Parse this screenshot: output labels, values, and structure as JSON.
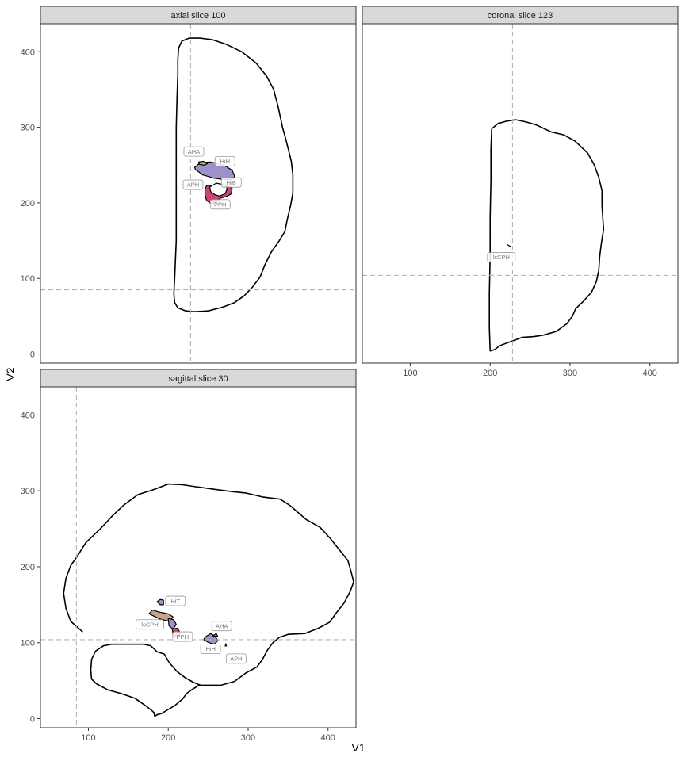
{
  "chart_data": {
    "type": "faceted-outline-plot",
    "xlabel": "V1",
    "ylabel": "V2",
    "xlim": [
      40,
      435
    ],
    "ylim": [
      -12,
      437
    ],
    "x_ticks": [
      100,
      200,
      300,
      400
    ],
    "y_ticks": [
      0,
      100,
      200,
      300,
      400
    ],
    "grid": false,
    "colors": {
      "outline": "#000000",
      "crosshair": "#b3b3b3",
      "strip_fill": "#d9d9d9",
      "purple": "#9e90c9",
      "magenta": "#c94472",
      "brown": "#c9a48a",
      "label_border": "#9a9a9a",
      "label_text": "#7a7a7a"
    },
    "panels": [
      {
        "title": "axial slice 100",
        "crosshair": {
          "x": 228,
          "y": 85
        },
        "outline": [
          [
            226,
            418
          ],
          [
            240,
            418
          ],
          [
            255,
            416
          ],
          [
            272,
            410
          ],
          [
            292,
            400
          ],
          [
            310,
            385
          ],
          [
            323,
            368
          ],
          [
            332,
            350
          ],
          [
            338,
            325
          ],
          [
            343,
            300
          ],
          [
            347,
            285
          ],
          [
            350,
            272
          ],
          [
            354,
            255
          ],
          [
            356,
            237
          ],
          [
            356,
            213
          ],
          [
            353,
            196
          ],
          [
            349,
            178
          ],
          [
            346,
            162
          ],
          [
            339,
            150
          ],
          [
            329,
            135
          ],
          [
            321,
            118
          ],
          [
            315,
            102
          ],
          [
            305,
            88
          ],
          [
            295,
            77
          ],
          [
            283,
            68
          ],
          [
            268,
            62
          ],
          [
            250,
            57
          ],
          [
            232,
            56
          ],
          [
            222,
            57
          ],
          [
            212,
            61
          ],
          [
            208,
            68
          ],
          [
            207,
            80
          ],
          [
            208,
            100
          ],
          [
            210,
            150
          ],
          [
            210,
            200
          ],
          [
            210,
            250
          ],
          [
            210,
            300
          ],
          [
            211,
            340
          ],
          [
            212,
            370
          ],
          [
            212,
            390
          ],
          [
            213,
            405
          ],
          [
            217,
            414
          ],
          [
            226,
            418
          ]
        ],
        "regions": [
          {
            "color": "purple",
            "points": [
              [
                233,
                247
              ],
              [
                240,
                253
              ],
              [
                252,
                254
              ],
              [
                264,
                252
              ],
              [
                273,
                248
              ],
              [
                280,
                243
              ],
              [
                283,
                236
              ],
              [
                282,
                232
              ],
              [
                276,
                231
              ],
              [
                268,
                231
              ],
              [
                262,
                232
              ],
              [
                256,
                233
              ],
              [
                250,
                235
              ],
              [
                243,
                237
              ],
              [
                238,
                241
              ],
              [
                234,
                244
              ],
              [
                233,
                247
              ]
            ]
          },
          {
            "color": "magenta",
            "points": [
              [
                248,
                223
              ],
              [
                254,
                223
              ],
              [
                258,
                220
              ],
              [
                262,
                223
              ],
              [
                274,
                223
              ],
              [
                280,
                219
              ],
              [
                279,
                212
              ],
              [
                274,
                209
              ],
              [
                265,
                206
              ],
              [
                260,
                201
              ],
              [
                254,
                199
              ],
              [
                248,
                203
              ],
              [
                246,
                210
              ],
              [
                246,
                218
              ],
              [
                248,
                223
              ]
            ]
          },
          {
            "color": "white",
            "points": [
              [
                252,
                221
              ],
              [
                260,
                226
              ],
              [
                270,
                224
              ],
              [
                274,
                219
              ],
              [
                271,
                212
              ],
              [
                264,
                209
              ],
              [
                258,
                211
              ],
              [
                253,
                215
              ],
              [
                252,
                221
              ]
            ]
          },
          {
            "color": "olive",
            "points": [
              [
                238,
                254
              ],
              [
                244,
                255
              ],
              [
                249,
                252
              ],
              [
                245,
                250
              ],
              [
                239,
                251
              ],
              [
                238,
                254
              ]
            ]
          }
        ],
        "labels": [
          {
            "text": "AHA",
            "x": 232,
            "y": 268
          },
          {
            "text": "HiH",
            "x": 271,
            "y": 255
          },
          {
            "text": "APH",
            "x": 231,
            "y": 224
          },
          {
            "text": "HiB",
            "x": 279,
            "y": 227
          },
          {
            "text": "PPH",
            "x": 265,
            "y": 198
          }
        ]
      },
      {
        "title": "coronal slice 123",
        "crosshair": {
          "x": 228,
          "y": 104
        },
        "outline": [
          [
            202,
            298
          ],
          [
            210,
            305
          ],
          [
            220,
            308
          ],
          [
            232,
            310
          ],
          [
            245,
            307
          ],
          [
            258,
            303
          ],
          [
            266,
            299
          ],
          [
            276,
            294
          ],
          [
            292,
            290
          ],
          [
            306,
            282
          ],
          [
            313,
            275
          ],
          [
            322,
            266
          ],
          [
            330,
            251
          ],
          [
            336,
            234
          ],
          [
            340,
            216
          ],
          [
            340,
            196
          ],
          [
            341,
            180
          ],
          [
            342,
            165
          ],
          [
            339,
            145
          ],
          [
            337,
            128
          ],
          [
            336,
            110
          ],
          [
            333,
            96
          ],
          [
            327,
            82
          ],
          [
            317,
            70
          ],
          [
            307,
            60
          ],
          [
            303,
            50
          ],
          [
            296,
            40
          ],
          [
            283,
            30
          ],
          [
            267,
            25
          ],
          [
            255,
            23
          ],
          [
            240,
            22
          ],
          [
            230,
            18
          ],
          [
            222,
            15
          ],
          [
            212,
            11
          ],
          [
            206,
            6
          ],
          [
            200,
            4
          ],
          [
            199,
            35
          ],
          [
            199,
            80
          ],
          [
            200,
            130
          ],
          [
            200,
            180
          ],
          [
            201,
            230
          ],
          [
            201,
            270
          ],
          [
            202,
            298
          ]
        ],
        "regions": [
          {
            "color": "black",
            "points": [
              [
                221,
                145
              ],
              [
                224,
                143
              ],
              [
                226,
                142
              ]
            ]
          }
        ],
        "labels": [
          {
            "text": "lsCPH",
            "x": 214,
            "y": 128
          }
        ]
      },
      {
        "title": "sagittal slice 30",
        "crosshair": {
          "x": 85,
          "y": 104
        },
        "outline": [
          [
            93,
            114
          ],
          [
            78,
            128
          ],
          [
            72,
            145
          ],
          [
            69,
            165
          ],
          [
            72,
            185
          ],
          [
            78,
            202
          ],
          [
            85,
            212
          ],
          [
            97,
            232
          ],
          [
            115,
            250
          ],
          [
            130,
            267
          ],
          [
            144,
            281
          ],
          [
            162,
            295
          ],
          [
            180,
            301
          ],
          [
            200,
            309
          ],
          [
            218,
            308
          ],
          [
            231,
            306
          ],
          [
            258,
            302
          ],
          [
            280,
            299
          ],
          [
            298,
            297
          ],
          [
            318,
            292
          ],
          [
            340,
            289
          ],
          [
            352,
            281
          ],
          [
            363,
            271
          ],
          [
            373,
            262
          ],
          [
            390,
            252
          ],
          [
            403,
            237
          ],
          [
            413,
            224
          ],
          [
            425,
            208
          ],
          [
            429,
            193
          ],
          [
            432,
            180
          ],
          [
            428,
            168
          ],
          [
            420,
            152
          ],
          [
            411,
            140
          ],
          [
            402,
            127
          ],
          [
            388,
            119
          ],
          [
            371,
            112
          ],
          [
            350,
            111
          ],
          [
            339,
            107
          ],
          [
            331,
            100
          ],
          [
            324,
            90
          ],
          [
            318,
            78
          ],
          [
            311,
            68
          ],
          [
            297,
            60
          ],
          [
            283,
            49
          ],
          [
            266,
            44
          ],
          [
            240,
            44
          ],
          [
            231,
            48
          ],
          [
            221,
            54
          ],
          [
            211,
            62
          ],
          [
            201,
            74
          ],
          [
            195,
            85
          ],
          [
            186,
            88
          ],
          [
            178,
            96
          ],
          [
            169,
            98
          ],
          [
            160,
            98
          ],
          [
            152,
            98
          ],
          [
            141,
            98
          ],
          [
            129,
            98
          ],
          [
            119,
            96
          ],
          [
            109,
            89
          ],
          [
            104,
            78
          ],
          [
            103,
            64
          ],
          [
            104,
            52
          ],
          [
            110,
            46
          ],
          [
            124,
            38
          ],
          [
            141,
            33
          ],
          [
            158,
            27
          ],
          [
            173,
            16
          ],
          [
            180,
            10
          ],
          [
            182,
            8
          ],
          [
            183,
            3
          ],
          [
            186,
            5
          ],
          [
            192,
            7
          ],
          [
            200,
            12
          ],
          [
            208,
            17
          ],
          [
            218,
            26
          ],
          [
            223,
            33
          ],
          [
            228,
            37
          ],
          [
            240,
            45
          ]
        ],
        "regions": [
          {
            "color": "purple",
            "points": [
              [
                186,
                154
              ],
              [
                190,
                157
              ],
              [
                194,
                156
              ],
              [
                194,
                150
              ],
              [
                190,
                150
              ],
              [
                186,
                154
              ]
            ]
          },
          {
            "color": "brown",
            "points": [
              [
                176,
                138
              ],
              [
                190,
                131
              ],
              [
                202,
                128
              ],
              [
                206,
                134
              ],
              [
                200,
                138
              ],
              [
                190,
                140
              ],
              [
                180,
                143
              ],
              [
                176,
                138
              ]
            ]
          },
          {
            "color": "purple",
            "points": [
              [
                200,
                132
              ],
              [
                207,
                130
              ],
              [
                210,
                124
              ],
              [
                206,
                118
              ],
              [
                201,
                122
              ],
              [
                200,
                132
              ]
            ]
          },
          {
            "color": "magenta",
            "points": [
              [
                205,
                118
              ],
              [
                212,
                119
              ],
              [
                215,
                112
              ],
              [
                212,
                107
              ],
              [
                206,
                110
              ],
              [
                205,
                118
              ]
            ]
          },
          {
            "color": "purple",
            "points": [
              [
                244,
                104
              ],
              [
                247,
                108
              ],
              [
                253,
                112
              ],
              [
                258,
                109
              ],
              [
                262,
                103
              ],
              [
                258,
                98
              ],
              [
                251,
                100
              ],
              [
                244,
                104
              ]
            ]
          },
          {
            "color": "olive",
            "points": [
              [
                256,
                109
              ],
              [
                260,
                112
              ],
              [
                262,
                108
              ]
            ]
          },
          {
            "color": "black",
            "points": [
              [
                271,
                95
              ],
              [
                272,
                98
              ],
              [
                273,
                95
              ]
            ]
          }
        ],
        "labels": [
          {
            "text": "HiT",
            "x": 209,
            "y": 155
          },
          {
            "text": "lsCPH",
            "x": 177,
            "y": 124
          },
          {
            "text": "AHA",
            "x": 267,
            "y": 122
          },
          {
            "text": "PPH",
            "x": 218,
            "y": 108
          },
          {
            "text": "HiH",
            "x": 253,
            "y": 92
          },
          {
            "text": "APH",
            "x": 285,
            "y": 79
          }
        ]
      }
    ]
  }
}
